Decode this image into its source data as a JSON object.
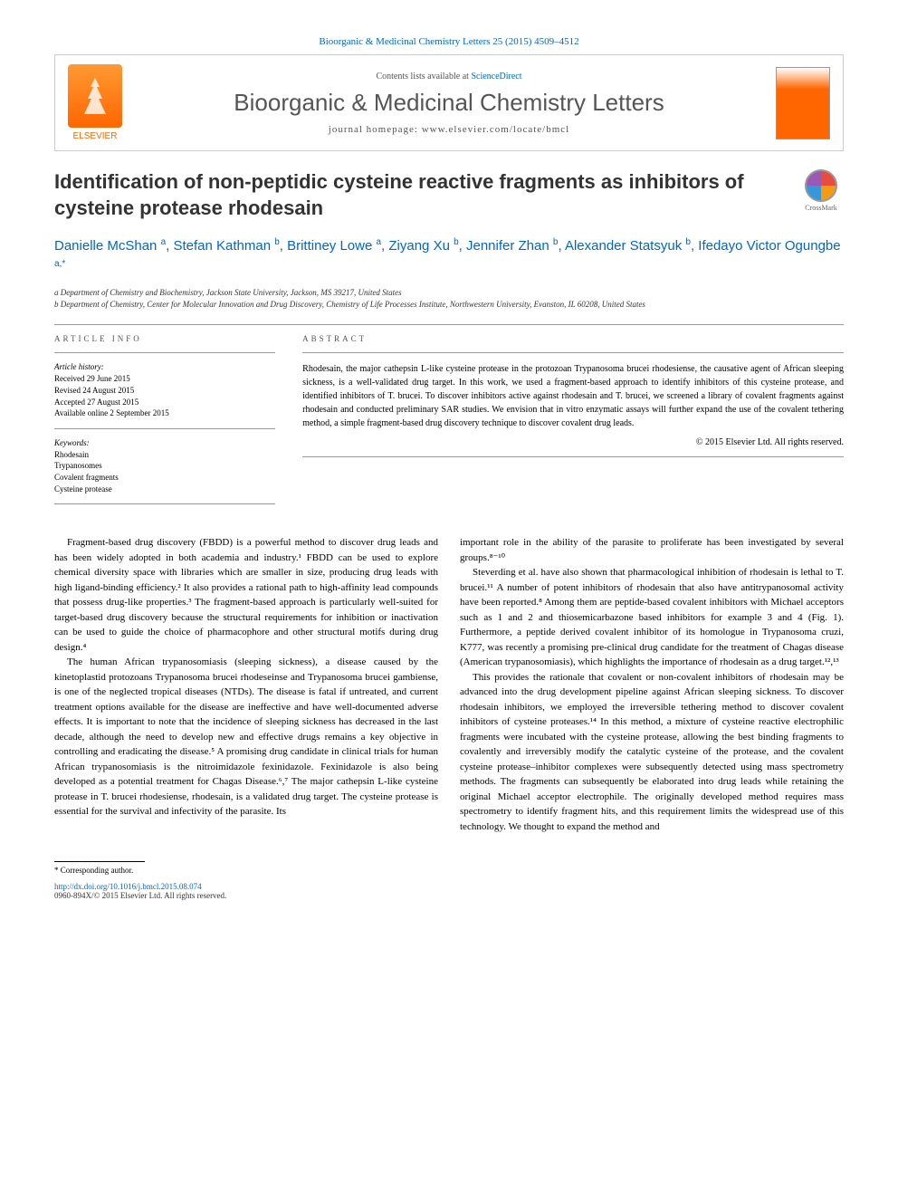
{
  "header": {
    "citation": "Bioorganic & Medicinal Chemistry Letters 25 (2015) 4509–4512",
    "contents_prefix": "Contents lists available at ",
    "contents_link": "ScienceDirect",
    "journal_name": "Bioorganic & Medicinal Chemistry Letters",
    "homepage_prefix": "journal homepage: ",
    "homepage": "www.elsevier.com/locate/bmcl",
    "publisher": "ELSEVIER",
    "crossmark": "CrossMark"
  },
  "title": "Identification of non-peptidic cysteine reactive fragments as inhibitors of cysteine protease rhodesain",
  "authors_html": "Danielle McShan <sup>a</sup>, Stefan Kathman <sup>b</sup>, Brittiney Lowe <sup>a</sup>, Ziyang Xu <sup>b</sup>, Jennifer Zhan <sup>b</sup>, Alexander Statsyuk <sup>b</sup>, Ifedayo Victor Ogungbe <sup>a,*</sup>",
  "affiliations": [
    "a Department of Chemistry and Biochemistry, Jackson State University, Jackson, MS 39217, United States",
    "b Department of Chemistry, Center for Molecular Innovation and Drug Discovery, Chemistry of Life Processes Institute, Northwestern University, Evanston, IL 60208, United States"
  ],
  "article_info": {
    "heading": "ARTICLE INFO",
    "history_heading": "Article history:",
    "history": [
      "Received 29 June 2015",
      "Revised 24 August 2015",
      "Accepted 27 August 2015",
      "Available online 2 September 2015"
    ],
    "keywords_heading": "Keywords:",
    "keywords": [
      "Rhodesain",
      "Trypanosomes",
      "Covalent fragments",
      "Cysteine protease"
    ]
  },
  "abstract": {
    "heading": "ABSTRACT",
    "text": "Rhodesain, the major cathepsin L-like cysteine protease in the protozoan Trypanosoma brucei rhodesiense, the causative agent of African sleeping sickness, is a well-validated drug target. In this work, we used a fragment-based approach to identify inhibitors of this cysteine protease, and identified inhibitors of T. brucei. To discover inhibitors active against rhodesain and T. brucei, we screened a library of covalent fragments against rhodesain and conducted preliminary SAR studies. We envision that in vitro enzymatic assays will further expand the use of the covalent tethering method, a simple fragment-based drug discovery technique to discover covalent drug leads.",
    "copyright": "© 2015 Elsevier Ltd. All rights reserved."
  },
  "body": {
    "col1": [
      "Fragment-based drug discovery (FBDD) is a powerful method to discover drug leads and has been widely adopted in both academia and industry.¹ FBDD can be used to explore chemical diversity space with libraries which are smaller in size, producing drug leads with high ligand-binding efficiency.² It also provides a rational path to high-affinity lead compounds that possess drug-like properties.³ The fragment-based approach is particularly well-suited for target-based drug discovery because the structural requirements for inhibition or inactivation can be used to guide the choice of pharmacophore and other structural motifs during drug design.⁴",
      "The human African trypanosomiasis (sleeping sickness), a disease caused by the kinetoplastid protozoans Trypanosoma brucei rhodeseinse and Trypanosoma brucei gambiense, is one of the neglected tropical diseases (NTDs). The disease is fatal if untreated, and current treatment options available for the disease are ineffective and have well-documented adverse effects. It is important to note that the incidence of sleeping sickness has decreased in the last decade, although the need to develop new and effective drugs remains a key objective in controlling and eradicating the disease.⁵ A promising drug candidate in clinical trials for human African trypanosomiasis is the nitroimidazole fexinidazole. Fexinidazole is also being developed as a potential treatment for Chagas Disease.⁶,⁷ The major cathepsin L-like cysteine protease in T. brucei rhodesiense, rhodesain, is a validated drug target. The cysteine protease is essential for the survival and infectivity of the parasite. Its"
    ],
    "col2": [
      "important role in the ability of the parasite to proliferate has been investigated by several groups.⁸⁻¹⁰",
      "Steverding et al. have also shown that pharmacological inhibition of rhodesain is lethal to T. brucei.¹¹ A number of potent inhibitors of rhodesain that also have antitrypanosomal activity have been reported.⁸ Among them are peptide-based covalent inhibitors with Michael acceptors such as 1 and 2 and thiosemicarbazone based inhibitors for example 3 and 4 (Fig. 1). Furthermore, a peptide derived covalent inhibitor of its homologue in Trypanosoma cruzi, K777, was recently a promising pre-clinical drug candidate for the treatment of Chagas disease (American trypanosomiasis), which highlights the importance of rhodesain as a drug target.¹²,¹³",
      "This provides the rationale that covalent or non-covalent inhibitors of rhodesain may be advanced into the drug development pipeline against African sleeping sickness. To discover rhodesain inhibitors, we employed the irreversible tethering method to discover covalent inhibitors of cysteine proteases.¹⁴ In this method, a mixture of cysteine reactive electrophilic fragments were incubated with the cysteine protease, allowing the best binding fragments to covalently and irreversibly modify the catalytic cysteine of the protease, and the covalent cysteine protease–inhibitor complexes were subsequently detected using mass spectrometry methods. The fragments can subsequently be elaborated into drug leads while retaining the original Michael acceptor electrophile. The originally developed method requires mass spectrometry to identify fragment hits, and this requirement limits the widespread use of this technology. We thought to expand the method and"
    ]
  },
  "footer": {
    "corresponding": "* Corresponding author.",
    "doi": "http://dx.doi.org/10.1016/j.bmcl.2015.08.074",
    "issn": "0960-894X/© 2015 Elsevier Ltd. All rights reserved."
  },
  "colors": {
    "link": "#0066cc",
    "elsevier": "#ff6600",
    "text": "#000000",
    "heading_gray": "#555555"
  }
}
